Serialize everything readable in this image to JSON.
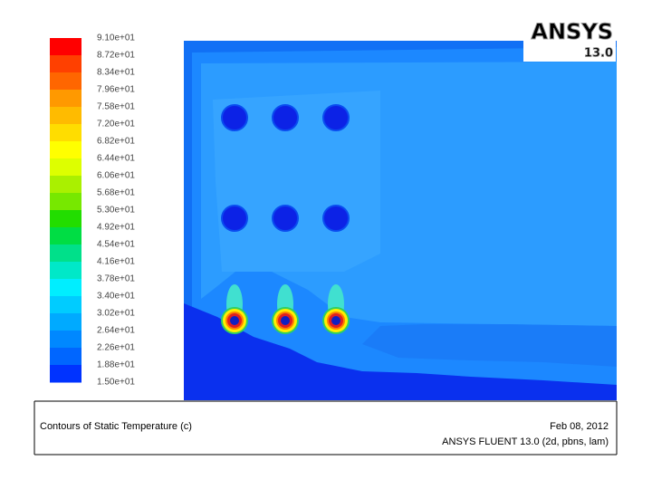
{
  "colorbar": {
    "labels": [
      "9.10e+01",
      "8.72e+01",
      "8.34e+01",
      "7.96e+01",
      "7.58e+01",
      "7.20e+01",
      "6.82e+01",
      "6.44e+01",
      "6.06e+01",
      "5.68e+01",
      "5.30e+01",
      "4.92e+01",
      "4.54e+01",
      "4.16e+01",
      "3.78e+01",
      "3.40e+01",
      "3.02e+01",
      "2.64e+01",
      "2.26e+01",
      "1.88e+01",
      "1.50e+01"
    ]
  },
  "logo": {
    "brand": "ANSYS",
    "version": "13.0"
  },
  "caption": {
    "title": "Contours of Static Temperature (c)",
    "date": "Feb 08, 2012",
    "solver": "ANSYS FLUENT 13.0 (2d, pbns, lam)"
  }
}
